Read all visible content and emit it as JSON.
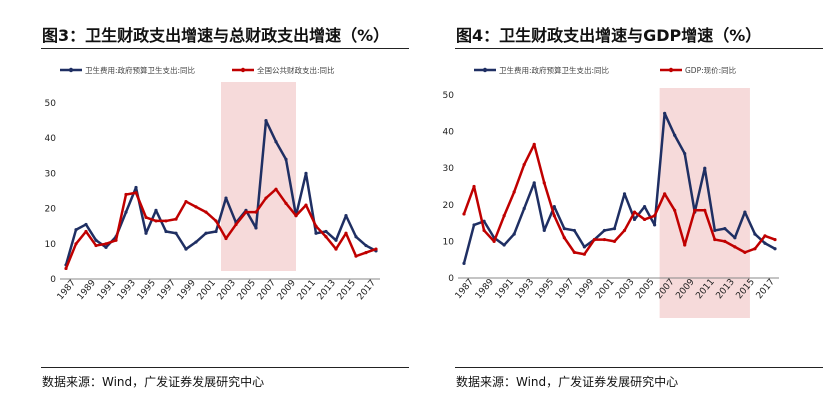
{
  "colors": {
    "navy": "#1F2F63",
    "red": "#C00000",
    "shade": "#F6DADA",
    "axis": "#888888"
  },
  "left": {
    "title": "图3：卫生财政支出增速与总财政支出增速（%）",
    "source": "数据来源：Wind，广发证券发展研究中心",
    "chart_data": {
      "type": "line",
      "x": [
        1987,
        1988,
        1989,
        1990,
        1991,
        1992,
        1993,
        1994,
        1995,
        1996,
        1997,
        1998,
        1999,
        2000,
        2001,
        2002,
        2003,
        2004,
        2005,
        2006,
        2007,
        2008,
        2009,
        2010,
        2011,
        2012,
        2013,
        2014,
        2015,
        2016,
        2017,
        2018
      ],
      "x_tick_labels": [
        "1987",
        "1989",
        "1991",
        "1993",
        "1995",
        "1997",
        "1999",
        "2001",
        "2003",
        "2005",
        "2007",
        "2009",
        "2011",
        "2013",
        "2015",
        "2017"
      ],
      "ylim": [
        0,
        50
      ],
      "y_ticks": [
        "0",
        "10",
        "20",
        "30",
        "40",
        "50"
      ],
      "shaded_region": [
        2002.5,
        2010
      ],
      "legend_position": "top",
      "series": [
        {
          "name": "卫生费用:政府预算卫生支出:同比",
          "color": "#1F2F63",
          "values": [
            4,
            14,
            15.5,
            11,
            9,
            12,
            19,
            26,
            13,
            19.5,
            13.5,
            13,
            8.5,
            10.5,
            13,
            13.5,
            23,
            16,
            19.5,
            14.5,
            45,
            39,
            34,
            18,
            30,
            13,
            13.5,
            11,
            18,
            12,
            9.5,
            8
          ]
        },
        {
          "name": "全国公共财政支出:同比",
          "color": "#C00000",
          "values": [
            3,
            10,
            13.5,
            9.5,
            10,
            11,
            24,
            24.5,
            17.5,
            16.5,
            16.5,
            17,
            22,
            20.5,
            19,
            16.5,
            11.5,
            15.5,
            19,
            19,
            23,
            25.5,
            21.5,
            18,
            21,
            15,
            12,
            8.5,
            13,
            6.5,
            7.5,
            8.5
          ]
        }
      ]
    }
  },
  "right": {
    "title": "图4：卫生财政支出增速与GDP增速（%）",
    "source": "数据来源：Wind，广发证券发展研究中心",
    "chart_data": {
      "type": "line",
      "x": [
        1987,
        1988,
        1989,
        1990,
        1991,
        1992,
        1993,
        1994,
        1995,
        1996,
        1997,
        1998,
        1999,
        2000,
        2001,
        2002,
        2003,
        2004,
        2005,
        2006,
        2007,
        2008,
        2009,
        2010,
        2011,
        2012,
        2013,
        2014,
        2015,
        2016,
        2017,
        2018
      ],
      "x_tick_labels": [
        "1987",
        "1989",
        "1991",
        "1993",
        "1995",
        "1997",
        "1999",
        "2001",
        "2003",
        "2005",
        "2007",
        "2009",
        "2011",
        "2013",
        "2015",
        "2017"
      ],
      "ylim": [
        0,
        50
      ],
      "y_ticks": [
        "0",
        "10",
        "20",
        "30",
        "40",
        "50"
      ],
      "shaded_region": [
        2006.5,
        2015.5
      ],
      "legend_position": "top",
      "series": [
        {
          "name": "卫生费用:政府预算卫生支出:同比",
          "color": "#1F2F63",
          "values": [
            4,
            14.5,
            15.5,
            11,
            9,
            12,
            19,
            26,
            13,
            19.5,
            13.5,
            13,
            8.5,
            10.5,
            13,
            13.5,
            23,
            16,
            19.5,
            14.5,
            45,
            39,
            34,
            18,
            30,
            13,
            13.5,
            11,
            18,
            12,
            9.5,
            8
          ]
        },
        {
          "name": "GDP:现价:同比",
          "color": "#C00000",
          "values": [
            17.5,
            25,
            13,
            10,
            17,
            23.5,
            31,
            36.5,
            26,
            17,
            11,
            7,
            6.5,
            10.5,
            10.5,
            10,
            13,
            18,
            16,
            17,
            23,
            18.5,
            9,
            18.5,
            18.5,
            10.5,
            10,
            8.5,
            7,
            8,
            11.5,
            10.5
          ]
        }
      ]
    }
  }
}
